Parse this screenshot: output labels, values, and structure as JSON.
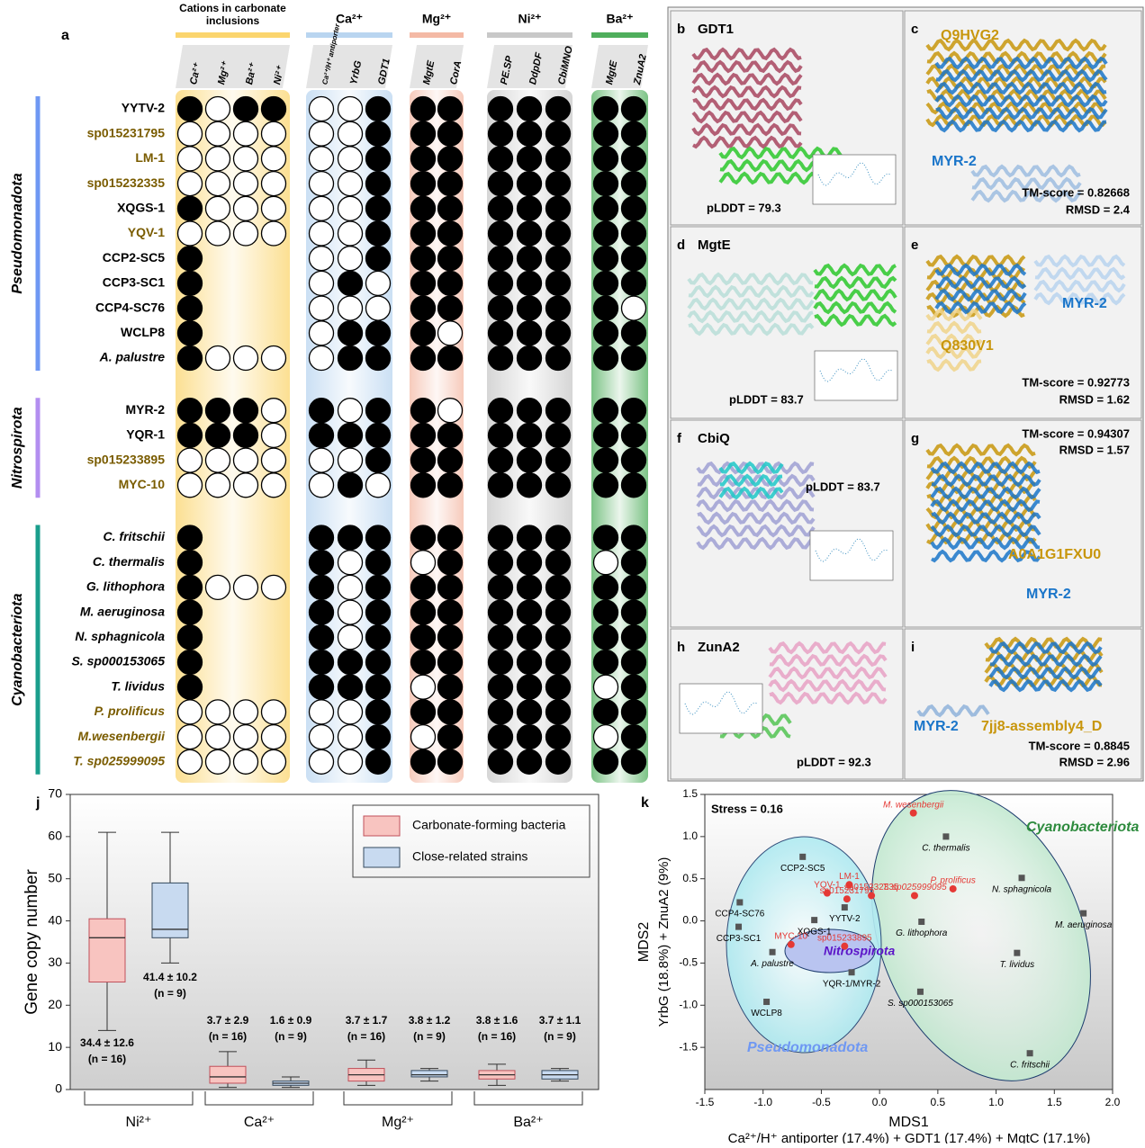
{
  "panel_a": {
    "label": "a",
    "groups": [
      {
        "title": "Cations in carbonate inclusions",
        "color": "#fbd56e",
        "columns": [
          "Ca²⁺",
          "Mg²⁺",
          "Ba²⁺",
          "Ni²⁺"
        ]
      },
      {
        "title": "Ca²⁺",
        "color": "#b9d5f0",
        "columns": [
          "Ca²⁺/H⁺ antiporter",
          "YrbG",
          "GDT1"
        ]
      },
      {
        "title": "Mg²⁺",
        "color": "#f4b9a5",
        "columns": [
          "MgtE",
          "CorA"
        ]
      },
      {
        "title": "Ni²⁺",
        "color": "#c8c8c8",
        "columns": [
          "PE.SP",
          "DdpDF",
          "CbiMNO"
        ]
      },
      {
        "title": "Ba²⁺",
        "color": "#4fae5c",
        "columns": [
          "MgtE",
          "ZnuA2"
        ]
      }
    ],
    "phyla": [
      {
        "name": "Pseudomonadota",
        "color": "#6f98f3",
        "rows": [
          {
            "name": "YYTV-2",
            "color": "#000000",
            "cells": [
              1,
              0,
              1,
              1,
              0,
              0,
              1,
              1,
              1,
              1,
              1,
              1,
              1,
              1
            ]
          },
          {
            "name": "sp015231795",
            "color": "#7a5c00",
            "cells": [
              0,
              0,
              0,
              0,
              0,
              0,
              1,
              1,
              1,
              1,
              1,
              1,
              1,
              1
            ]
          },
          {
            "name": "LM-1",
            "color": "#7a5c00",
            "cells": [
              0,
              0,
              0,
              0,
              0,
              0,
              1,
              1,
              1,
              1,
              1,
              1,
              1,
              1
            ]
          },
          {
            "name": "sp015232335",
            "color": "#7a5c00",
            "cells": [
              0,
              0,
              0,
              0,
              0,
              0,
              1,
              1,
              1,
              1,
              1,
              1,
              1,
              1
            ]
          },
          {
            "name": "XQGS-1",
            "color": "#000000",
            "cells": [
              1,
              0,
              0,
              0,
              0,
              0,
              1,
              1,
              1,
              1,
              1,
              1,
              1,
              1
            ]
          },
          {
            "name": "YQV-1",
            "color": "#7a5c00",
            "cells": [
              0,
              0,
              0,
              0,
              0,
              0,
              1,
              1,
              1,
              1,
              1,
              1,
              1,
              1
            ]
          },
          {
            "name": "CCP2-SC5",
            "color": "#000000",
            "cells": [
              1,
              null,
              null,
              null,
              0,
              0,
              1,
              1,
              1,
              1,
              1,
              1,
              1,
              1
            ]
          },
          {
            "name": "CCP3-SC1",
            "color": "#000000",
            "cells": [
              1,
              null,
              null,
              null,
              0,
              1,
              0,
              1,
              1,
              1,
              1,
              1,
              1,
              1
            ]
          },
          {
            "name": "CCP4-SC76",
            "color": "#000000",
            "cells": [
              1,
              null,
              null,
              null,
              0,
              0,
              0,
              1,
              1,
              1,
              1,
              1,
              1,
              0
            ]
          },
          {
            "name": "WCLP8",
            "color": "#000000",
            "cells": [
              1,
              null,
              null,
              null,
              0,
              1,
              1,
              1,
              0,
              1,
              1,
              1,
              1,
              1
            ]
          },
          {
            "name": "A. palustre",
            "color": "#000000",
            "italic": true,
            "cells": [
              1,
              0,
              0,
              0,
              0,
              1,
              1,
              1,
              1,
              1,
              1,
              1,
              1,
              1
            ]
          }
        ]
      },
      {
        "name": "Nitrospirota",
        "color": "#b38ef0",
        "rows": [
          {
            "name": "MYR-2",
            "color": "#000000",
            "cells": [
              1,
              1,
              1,
              0,
              1,
              0,
              1,
              1,
              0,
              1,
              1,
              1,
              1,
              1
            ]
          },
          {
            "name": "YQR-1",
            "color": "#000000",
            "cells": [
              1,
              1,
              1,
              0,
              1,
              1,
              1,
              1,
              1,
              1,
              1,
              1,
              1,
              1
            ]
          },
          {
            "name": "sp015233895",
            "color": "#7a5c00",
            "cells": [
              0,
              0,
              0,
              0,
              0,
              0,
              1,
              1,
              1,
              1,
              1,
              1,
              1,
              1
            ]
          },
          {
            "name": "MYC-10",
            "color": "#7a5c00",
            "cells": [
              0,
              0,
              0,
              0,
              0,
              1,
              0,
              1,
              1,
              1,
              1,
              1,
              1,
              1
            ]
          }
        ]
      },
      {
        "name": "Cyanobacteriota",
        "color": "#1a9e8c",
        "rows": [
          {
            "name": "C. fritschii",
            "color": "#000000",
            "italic": true,
            "cells": [
              1,
              null,
              null,
              null,
              1,
              1,
              1,
              1,
              1,
              1,
              1,
              1,
              1,
              1
            ]
          },
          {
            "name": "C. thermalis",
            "color": "#000000",
            "italic": true,
            "cells": [
              1,
              null,
              null,
              null,
              1,
              0,
              1,
              0,
              1,
              1,
              1,
              1,
              0,
              1
            ]
          },
          {
            "name": "G. lithophora",
            "color": "#000000",
            "italic": true,
            "cells": [
              1,
              0,
              0,
              0,
              1,
              0,
              1,
              1,
              1,
              1,
              1,
              1,
              1,
              1
            ]
          },
          {
            "name": "M. aeruginosa",
            "color": "#000000",
            "italic": true,
            "cells": [
              1,
              null,
              null,
              null,
              1,
              0,
              1,
              1,
              1,
              1,
              1,
              1,
              1,
              1
            ]
          },
          {
            "name": "N. sphagnicola",
            "color": "#000000",
            "italic": true,
            "cells": [
              1,
              null,
              null,
              null,
              1,
              0,
              1,
              1,
              1,
              1,
              1,
              1,
              1,
              1
            ]
          },
          {
            "name": "S. sp000153065",
            "color": "#000000",
            "italic": true,
            "cells": [
              1,
              null,
              null,
              null,
              1,
              1,
              1,
              1,
              1,
              1,
              1,
              1,
              1,
              1
            ]
          },
          {
            "name": "T. lividus",
            "color": "#000000",
            "italic": true,
            "cells": [
              1,
              null,
              null,
              null,
              1,
              1,
              1,
              0,
              1,
              1,
              1,
              1,
              0,
              1
            ]
          },
          {
            "name": "P. prolificus",
            "color": "#7a5c00",
            "italic": true,
            "cells": [
              0,
              0,
              0,
              0,
              0,
              0,
              1,
              1,
              1,
              1,
              1,
              1,
              1,
              1
            ]
          },
          {
            "name": "M.wesenbergii",
            "color": "#7a5c00",
            "italic": true,
            "cells": [
              0,
              0,
              0,
              0,
              0,
              0,
              1,
              0,
              1,
              1,
              1,
              1,
              0,
              1
            ]
          },
          {
            "name": "T. sp025999095",
            "color": "#7a5c00",
            "italic": true,
            "cells": [
              0,
              0,
              0,
              0,
              0,
              0,
              1,
              1,
              1,
              1,
              1,
              1,
              1,
              1
            ]
          }
        ]
      }
    ]
  },
  "protein_panels": [
    {
      "label": "b",
      "title": "GDT1",
      "texts": [
        "pLDDT = 79.3"
      ]
    },
    {
      "label": "c",
      "texts": [
        "Q9HVG2",
        "MYR-2",
        "TM-score = 0.82668",
        "RMSD = 2.4"
      ]
    },
    {
      "label": "d",
      "title": "MgtE",
      "texts": [
        "pLDDT = 83.7"
      ]
    },
    {
      "label": "e",
      "texts": [
        "MYR-2",
        "Q830V1",
        "TM-score = 0.92773",
        "RMSD = 1.62"
      ]
    },
    {
      "label": "f",
      "title": "CbiQ",
      "texts": [
        "pLDDT = 83.7"
      ]
    },
    {
      "label": "g",
      "texts": [
        "TM-score = 0.94307",
        "RMSD = 1.57",
        "A0A1G1FXU0",
        "MYR-2"
      ]
    },
    {
      "label": "h",
      "title": "ZunA2",
      "texts": [
        "pLDDT = 92.3"
      ]
    },
    {
      "label": "i",
      "texts": [
        "MYR-2",
        "7jj8-assembly4_D",
        "TM-score = 0.8845",
        "RMSD = 2.96"
      ]
    }
  ],
  "chart_data": [
    {
      "type": "box",
      "label": "j",
      "categories": [
        "Ni²⁺",
        "Ca²⁺",
        "Mg²⁺",
        "Ba²⁺"
      ],
      "ylabel": "Gene copy number",
      "ylim": [
        0,
        70
      ],
      "yticks": [
        0,
        10,
        20,
        30,
        40,
        50,
        60,
        70
      ],
      "series": [
        {
          "name": "Carbonate-forming bacteria",
          "color": "#f8c4c0",
          "min": [
            14,
            0.5,
            1,
            1
          ],
          "q1": [
            25.5,
            1.5,
            2,
            2.5
          ],
          "median": [
            36,
            3,
            3.5,
            3.5
          ],
          "q3": [
            40.5,
            5.5,
            5,
            4.5
          ],
          "max": [
            61,
            9,
            7,
            6
          ],
          "mean_sd": [
            "34.4 ± 12.6",
            "3.7 ± 2.9",
            "3.7 ± 1.7",
            "3.8 ± 1.6"
          ],
          "n": [
            "(n = 16)",
            "(n = 16)",
            "(n = 16)",
            "(n = 16)"
          ]
        },
        {
          "name": "Close-related strains",
          "color": "#c8daf0",
          "min": [
            30,
            0.5,
            2,
            2
          ],
          "q1": [
            36,
            1,
            3,
            2.5
          ],
          "median": [
            38,
            1.5,
            3.5,
            3.5
          ],
          "q3": [
            49,
            2,
            4.5,
            4.5
          ],
          "max": [
            61,
            3,
            5,
            5
          ],
          "mean_sd": [
            "41.4 ± 10.2",
            "1.6 ± 0.9",
            "3.8 ± 1.2",
            "3.7 ± 1.1"
          ],
          "n": [
            "(n = 9)",
            "(n = 9)",
            "(n = 9)",
            "(n = 9)"
          ]
        }
      ]
    },
    {
      "type": "scatter",
      "label": "k",
      "xlabel": "MDS1",
      "xlabel_detail": "Ca²⁺/H⁺ antiporter (17.4%) + GDT1 (17.4%) + MgtC (17.1%)",
      "ylabel": "MDS2",
      "ylabel_detail": "YrbG (18.8%) + ZnuA2 (9%)",
      "xlim": [
        -1.5,
        2.0
      ],
      "xticks": [
        {
          "value": -1.5,
          "label": "-1.5"
        },
        {
          "value": -1.0,
          "label": "-1.0"
        },
        {
          "value": -0.5,
          "label": "-0.5"
        },
        {
          "value": 0,
          "label": "0.0"
        },
        {
          "value": 0.5,
          "label": "0.5"
        },
        {
          "value": 1.0,
          "label": "1.0"
        },
        {
          "value": 1.5,
          "label": "1.5"
        },
        {
          "value": 2.0,
          "label": "2.0"
        }
      ],
      "ylim": [
        -2.0,
        1.5
      ],
      "yticks": [
        {
          "value": -1.5,
          "label": "-1.5"
        },
        {
          "value": -1.0,
          "label": "-1.0"
        },
        {
          "value": -0.5,
          "label": "-0.5"
        },
        {
          "value": 0,
          "label": "0.0"
        },
        {
          "value": 0.5,
          "label": "0.5"
        },
        {
          "value": 1.0,
          "label": "1.0"
        },
        {
          "value": 1.5,
          "label": "1.5"
        }
      ],
      "annotations": [
        "Stress = 0.16",
        "Cyanobacteriota",
        "Nitrospirota",
        "Pseudomonadota"
      ],
      "series": [
        {
          "color": "#555555",
          "marker": "square",
          "labels": [
            "CCP2-SC5",
            "CCP4-SC76",
            "CCP3-SC1",
            "XQGS-1",
            "YYTV-2",
            "A. palustre",
            "WCLP8",
            "YQR-1/MYR-2",
            "C. thermalis",
            "G. lithophora",
            "N. sphagnicola",
            "M. aeruginosa",
            "T. lividus",
            "S. sp000153065",
            "C. fritschii"
          ],
          "x": [
            -0.66,
            -1.2,
            -1.21,
            -0.56,
            -0.3,
            -0.92,
            -0.97,
            -0.24,
            0.57,
            0.36,
            1.22,
            1.75,
            1.18,
            0.35,
            1.29
          ],
          "y": [
            0.76,
            0.22,
            -0.07,
            0.01,
            0.16,
            -0.37,
            -0.96,
            -0.61,
            1.0,
            -0.01,
            0.51,
            0.09,
            -0.38,
            -0.84,
            -1.57
          ]
        },
        {
          "color": "#e53935",
          "marker": "circle",
          "labels": [
            "M. wesenbergii",
            "YQV-1",
            "LM-1",
            "sp015232335",
            "sp015231795",
            "P. prolificus",
            "T. sp025999095",
            "MYC-10",
            "sp015233895"
          ],
          "x": [
            0.29,
            -0.45,
            -0.26,
            -0.07,
            -0.28,
            0.63,
            0.3,
            -0.76,
            -0.3
          ],
          "y": [
            1.28,
            0.33,
            0.43,
            0.3,
            0.26,
            0.38,
            0.3,
            -0.28,
            -0.3
          ]
        }
      ]
    }
  ]
}
